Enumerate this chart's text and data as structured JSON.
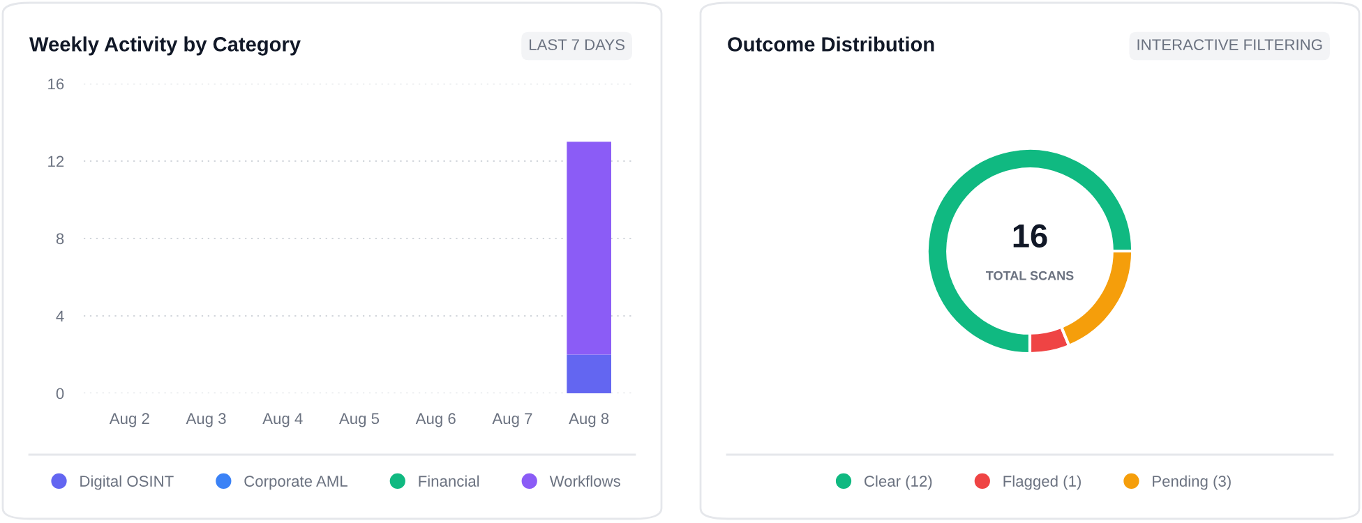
{
  "chart_data": [
    {
      "type": "bar",
      "title": "Weekly Activity by Category",
      "subtitle": "LAST 7 DAYS",
      "stacked": true,
      "categories": [
        "Aug 2",
        "Aug 3",
        "Aug 4",
        "Aug 5",
        "Aug 6",
        "Aug 7",
        "Aug 8"
      ],
      "series": [
        {
          "name": "Digital OSINT",
          "color": "#6366f1",
          "values": [
            0,
            0,
            0,
            0,
            0,
            0,
            2
          ]
        },
        {
          "name": "Corporate AML",
          "color": "#3b82f6",
          "values": [
            0,
            0,
            0,
            0,
            0,
            0,
            0
          ]
        },
        {
          "name": "Financial",
          "color": "#10b981",
          "values": [
            0,
            0,
            0,
            0,
            0,
            0,
            0
          ]
        },
        {
          "name": "Workflows",
          "color": "#8b5cf6",
          "values": [
            0,
            0,
            0,
            0,
            0,
            0,
            11
          ]
        }
      ],
      "ylim": [
        0,
        16
      ],
      "yticks": [
        0,
        4,
        8,
        12,
        16
      ],
      "grid": "y",
      "legend": "bottom"
    },
    {
      "type": "donut",
      "title": "Outcome Distribution",
      "subtitle": "INTERACTIVE FILTERING",
      "categories": [
        "Clear (12)",
        "Flagged (1)",
        "Pending (3)"
      ],
      "values": [
        12,
        1,
        3
      ],
      "colors": [
        "#10b981",
        "#ef4444",
        "#f59e0b"
      ],
      "legend": "bottom",
      "annotations": [
        "16",
        "TOTAL SCANS"
      ]
    }
  ]
}
